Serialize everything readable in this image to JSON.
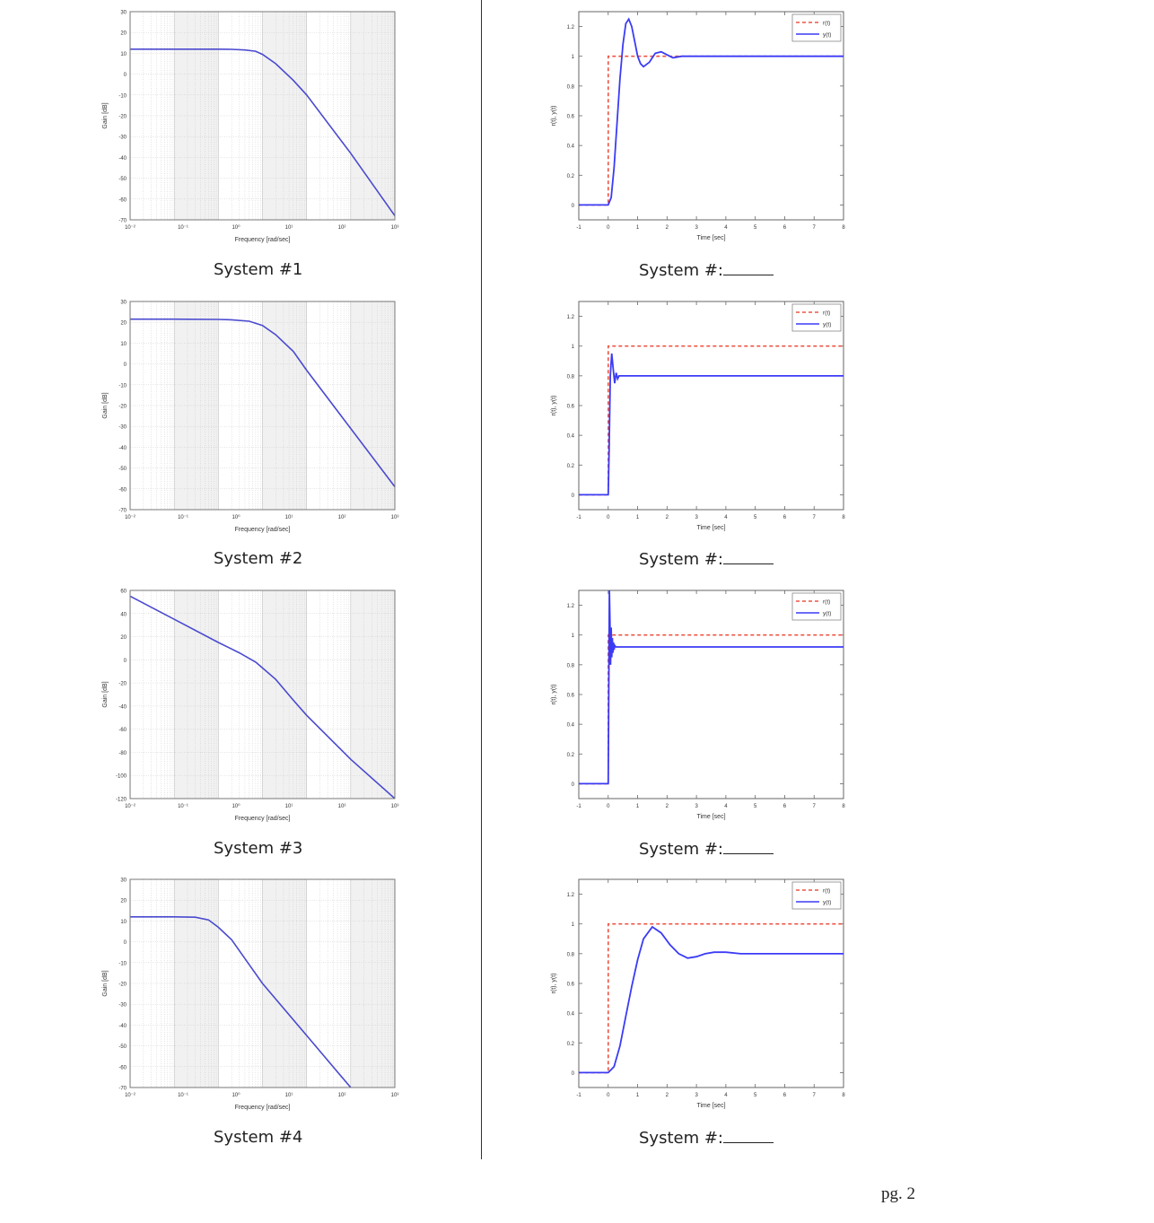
{
  "captions": {
    "left": [
      "System #1",
      "System #2",
      "System #3",
      "System #4"
    ],
    "right_prefix": "System #:"
  },
  "page_number": "pg. 2",
  "colors": {
    "response": "#3b3bf5",
    "reference": "#ee5544",
    "grid": "#c8c8c8",
    "bode_curve": "#4a4ad0"
  },
  "chart_data": [
    {
      "type": "line",
      "title": "",
      "xscale": "log",
      "xlabel": "Frequency   [rad/sec]",
      "ylabel": "Gain   [dB]",
      "xlim": [
        0.01,
        10000
      ],
      "ylim": [
        -70,
        30
      ],
      "xticks": [
        "10⁻²",
        "10⁻¹",
        "10⁰",
        "10¹",
        "10²",
        "10³"
      ],
      "yticks": [
        "30",
        "20",
        "10",
        "0",
        "-10",
        "-20",
        "-30",
        "-40",
        "-50",
        "-60",
        "-70"
      ],
      "grid": true,
      "series": [
        {
          "x": [
            0.01,
            0.1,
            1,
            2,
            4,
            7,
            10,
            20,
            50,
            100,
            1000,
            10000
          ],
          "y": [
            12,
            12,
            12,
            11.9,
            11.6,
            11,
            9.5,
            5,
            -3,
            -10,
            -38,
            -68
          ]
        }
      ]
    },
    {
      "type": "line",
      "title": "",
      "xscale": "log",
      "xlabel": "Frequency   [rad/sec]",
      "ylabel": "Gain   [dB]",
      "xlim": [
        0.01,
        10000
      ],
      "ylim": [
        -70,
        30
      ],
      "xticks": [
        "10⁻²",
        "10⁻¹",
        "10⁰",
        "10¹",
        "10²",
        "10³"
      ],
      "yticks": [
        "30",
        "20",
        "10",
        "0",
        "-10",
        "-20",
        "-30",
        "-40",
        "-50",
        "-60",
        "-70"
      ],
      "grid": true,
      "series": [
        {
          "x": [
            0.01,
            0.1,
            1,
            2,
            5,
            10,
            20,
            50,
            100,
            1000,
            10000
          ],
          "y": [
            21.5,
            21.5,
            21.4,
            21.2,
            20.5,
            18.5,
            14,
            6,
            -3,
            -31,
            -59
          ]
        }
      ]
    },
    {
      "type": "line",
      "title": "",
      "xscale": "log",
      "xlabel": "Frequency   [rad/sec]",
      "ylabel": "Gain   [dB]",
      "xlim": [
        0.01,
        10000
      ],
      "ylim": [
        -120,
        60
      ],
      "xticks": [
        "10⁻²",
        "10⁻¹",
        "10⁰",
        "10¹",
        "10²",
        "10³"
      ],
      "yticks": [
        "60",
        "40",
        "20",
        "0",
        "-20",
        "-40",
        "-60",
        "-80",
        "-100",
        "-120"
      ],
      "grid": true,
      "series": [
        {
          "x": [
            0.01,
            0.1,
            1,
            3,
            7,
            10,
            20,
            50,
            100,
            1000,
            10000
          ],
          "y": [
            55,
            35,
            15,
            6,
            -2,
            -7,
            -17,
            -35,
            -48,
            -86,
            -120
          ]
        }
      ]
    },
    {
      "type": "line",
      "title": "",
      "xscale": "log",
      "xlabel": "Frequency   [rad/sec]",
      "ylabel": "Gain   [dB]",
      "xlim": [
        0.01,
        10000
      ],
      "ylim": [
        -70,
        30
      ],
      "xticks": [
        "10⁻²",
        "10⁻¹",
        "10⁰",
        "10¹",
        "10²",
        "10³"
      ],
      "yticks": [
        "30",
        "20",
        "10",
        "0",
        "-10",
        "-20",
        "-30",
        "-40",
        "-50",
        "-60",
        "-70"
      ],
      "grid": true,
      "series": [
        {
          "x": [
            0.01,
            0.1,
            0.3,
            0.6,
            1,
            2,
            5,
            10,
            100,
            1000
          ],
          "y": [
            12,
            12,
            11.8,
            10.5,
            7,
            1,
            -11,
            -20,
            -45,
            -70
          ]
        }
      ]
    },
    {
      "type": "line",
      "title": "",
      "xlabel": "Time   [sec]",
      "ylabel": "r(t), y(t)",
      "xlim": [
        -1,
        8
      ],
      "ylim": [
        -0.1,
        1.3
      ],
      "xticks": [
        "-1",
        "0",
        "1",
        "2",
        "3",
        "4",
        "5",
        "6",
        "7",
        "8"
      ],
      "yticks": [
        "1.2",
        "1",
        "0.8",
        "0.6",
        "0.4",
        "0.2",
        "0"
      ],
      "grid": false,
      "legend": "top-right",
      "series": [
        {
          "name": "r(t)",
          "style": "dashed",
          "x": [
            -1,
            0,
            0,
            8
          ],
          "y": [
            0,
            0,
            1,
            1
          ]
        },
        {
          "name": "y(t)",
          "style": "solid",
          "x": [
            -1,
            0,
            0.1,
            0.2,
            0.3,
            0.4,
            0.5,
            0.6,
            0.7,
            0.8,
            0.9,
            1.0,
            1.1,
            1.2,
            1.4,
            1.6,
            1.8,
            2.0,
            2.2,
            2.5,
            2.8,
            3.2,
            8
          ],
          "y": [
            0,
            0,
            0.05,
            0.25,
            0.55,
            0.85,
            1.08,
            1.22,
            1.25,
            1.2,
            1.1,
            1.0,
            0.95,
            0.93,
            0.96,
            1.02,
            1.03,
            1.01,
            0.99,
            1.0,
            1.0,
            1.0,
            1.0
          ]
        }
      ]
    },
    {
      "type": "line",
      "title": "",
      "xlabel": "Time   [sec]",
      "ylabel": "r(t), y(t)",
      "xlim": [
        -1,
        8
      ],
      "ylim": [
        -0.1,
        1.3
      ],
      "xticks": [
        "-1",
        "0",
        "1",
        "2",
        "3",
        "4",
        "5",
        "6",
        "7",
        "8"
      ],
      "yticks": [
        "1.2",
        "1",
        "0.8",
        "0.6",
        "0.4",
        "0.2",
        "0"
      ],
      "grid": false,
      "legend": "top-right",
      "series": [
        {
          "name": "r(t)",
          "style": "dashed",
          "x": [
            -1,
            0,
            0,
            8
          ],
          "y": [
            0,
            0,
            1,
            1
          ]
        },
        {
          "name": "y(t)",
          "style": "solid",
          "x": [
            -1,
            0,
            0.03,
            0.07,
            0.12,
            0.17,
            0.22,
            0.27,
            0.32,
            0.37,
            0.45,
            0.55,
            0.7,
            8
          ],
          "y": [
            0,
            0,
            0.3,
            0.8,
            0.95,
            0.85,
            0.75,
            0.82,
            0.78,
            0.8,
            0.8,
            0.8,
            0.8,
            0.8
          ]
        }
      ]
    },
    {
      "type": "line",
      "title": "",
      "xlabel": "Time   [sec]",
      "ylabel": "r(t), y(t)",
      "xlim": [
        -1,
        8
      ],
      "ylim": [
        -0.1,
        1.3
      ],
      "xticks": [
        "-1",
        "0",
        "1",
        "2",
        "3",
        "4",
        "5",
        "6",
        "7",
        "8"
      ],
      "yticks": [
        "1.2",
        "1",
        "0.8",
        "0.6",
        "0.4",
        "0.2",
        "0"
      ],
      "grid": false,
      "legend": "top-right",
      "series": [
        {
          "name": "r(t)",
          "style": "dashed",
          "x": [
            -1,
            0,
            0,
            8
          ],
          "y": [
            0,
            0,
            1,
            1
          ]
        },
        {
          "name": "y(t)",
          "style": "solid",
          "x": [
            -1,
            0,
            0.02,
            0.04,
            0.06,
            0.08,
            0.1,
            0.12,
            0.14,
            0.16,
            0.18,
            0.2,
            0.22,
            0.26,
            0.3,
            0.4,
            8
          ],
          "y": [
            0,
            0,
            0.6,
            1.3,
            1.1,
            0.8,
            1.05,
            0.85,
            0.98,
            0.88,
            0.95,
            0.9,
            0.93,
            0.92,
            0.92,
            0.92,
            0.92
          ]
        }
      ]
    },
    {
      "type": "line",
      "title": "",
      "xlabel": "Time   [sec]",
      "ylabel": "r(t), y(t)",
      "xlim": [
        -1,
        8
      ],
      "ylim": [
        -0.1,
        1.3
      ],
      "xticks": [
        "-1",
        "0",
        "1",
        "2",
        "3",
        "4",
        "5",
        "6",
        "7",
        "8"
      ],
      "yticks": [
        "1.2",
        "1",
        "0.8",
        "0.6",
        "0.4",
        "0.2",
        "0"
      ],
      "grid": false,
      "legend": "top-right",
      "series": [
        {
          "name": "r(t)",
          "style": "dashed",
          "x": [
            -1,
            0,
            0,
            8
          ],
          "y": [
            0,
            0,
            1,
            1
          ]
        },
        {
          "name": "y(t)",
          "style": "solid",
          "x": [
            -1,
            0,
            0.2,
            0.4,
            0.6,
            0.8,
            1.0,
            1.2,
            1.5,
            1.8,
            2.1,
            2.4,
            2.7,
            3.0,
            3.3,
            3.6,
            4.0,
            4.5,
            5.0,
            6.0,
            8
          ],
          "y": [
            0,
            0,
            0.04,
            0.18,
            0.38,
            0.58,
            0.76,
            0.9,
            0.98,
            0.94,
            0.86,
            0.8,
            0.77,
            0.78,
            0.8,
            0.81,
            0.81,
            0.8,
            0.8,
            0.8,
            0.8
          ]
        }
      ]
    }
  ]
}
